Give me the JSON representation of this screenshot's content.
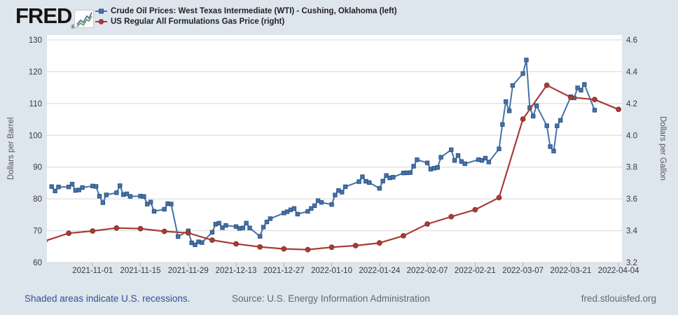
{
  "header": {
    "logo_text": "FRED",
    "registered_mark": "®"
  },
  "legend": [
    {
      "id": "wti",
      "label": "Crude Oil Prices: West Texas Intermediate (WTI) - Cushing, Oklahoma (left)",
      "color": "#4572a7",
      "marker_stroke": "#2d5484",
      "marker": "square"
    },
    {
      "id": "gas",
      "label": "US Regular All Formulations Gas Price (right)",
      "color": "#a93c38",
      "marker_stroke": "#8a2f2b",
      "marker": "circle"
    }
  ],
  "footer": {
    "recessions_note": "Shaded areas indicate U.S. recessions.",
    "source": "Source: U.S. Energy Information Administration",
    "site": "fred.stlouisfed.org"
  },
  "chart_data": {
    "type": "line",
    "grid": "horizontal-only",
    "legend_position": "top",
    "plot_background": "#ffffff",
    "page_background": "#dde5ed",
    "gridline_color": "#d8d8d8",
    "x_axis": {
      "start_date": "2021-10-18",
      "end_date": "2022-04-05",
      "tick_labels": [
        "2021-11-01",
        "2021-11-15",
        "2021-11-29",
        "2021-12-13",
        "2021-12-27",
        "2022-01-10",
        "2022-01-24",
        "2022-02-07",
        "2022-02-21",
        "2022-03-07",
        "2022-03-21",
        "2022-04-04"
      ]
    },
    "y_left": {
      "title": "Dollars per Barrel",
      "min": 60,
      "max": 130,
      "ticks": [
        60,
        70,
        80,
        90,
        100,
        110,
        120,
        130
      ],
      "tick_labels": [
        "60",
        "70",
        "80",
        "90",
        "100",
        "110",
        "120",
        "130"
      ]
    },
    "y_right": {
      "title": "Dollars per Gallon",
      "min": 3.2,
      "max": 4.6,
      "ticks": [
        3.2,
        3.4,
        3.6,
        3.8,
        4.0,
        4.2,
        4.4,
        4.6
      ],
      "tick_labels": [
        "3.2",
        "3.4",
        "3.6",
        "3.8",
        "4.0",
        "4.2",
        "4.4",
        "4.6"
      ]
    },
    "series": [
      {
        "name": "Crude Oil Prices: West Texas Intermediate (WTI) - Cushing, Oklahoma",
        "axis": "left",
        "color": "#4572a7",
        "marker_stroke": "#2d5484",
        "marker": "square",
        "points": [
          [
            "2021-10-20",
            83.87
          ],
          [
            "2021-10-21",
            82.5
          ],
          [
            "2021-10-22",
            83.76
          ],
          [
            "2021-10-25",
            83.76
          ],
          [
            "2021-10-26",
            84.65
          ],
          [
            "2021-10-27",
            82.66
          ],
          [
            "2021-10-28",
            82.81
          ],
          [
            "2021-10-29",
            83.57
          ],
          [
            "2021-11-01",
            84.05
          ],
          [
            "2021-11-02",
            83.91
          ],
          [
            "2021-11-03",
            80.86
          ],
          [
            "2021-11-04",
            78.81
          ],
          [
            "2021-11-05",
            81.27
          ],
          [
            "2021-11-08",
            81.93
          ],
          [
            "2021-11-09",
            84.15
          ],
          [
            "2021-11-10",
            81.34
          ],
          [
            "2021-11-11",
            81.59
          ],
          [
            "2021-11-12",
            80.79
          ],
          [
            "2021-11-15",
            80.88
          ],
          [
            "2021-11-16",
            80.76
          ],
          [
            "2021-11-17",
            78.36
          ],
          [
            "2021-11-18",
            79.01
          ],
          [
            "2021-11-19",
            76.1
          ],
          [
            "2021-11-22",
            76.75
          ],
          [
            "2021-11-23",
            78.5
          ],
          [
            "2021-11-24",
            78.39
          ],
          [
            "2021-11-26",
            68.15
          ],
          [
            "2021-11-29",
            69.95
          ],
          [
            "2021-11-30",
            66.18
          ],
          [
            "2021-12-01",
            65.57
          ],
          [
            "2021-12-02",
            66.5
          ],
          [
            "2021-12-03",
            66.26
          ],
          [
            "2021-12-06",
            69.49
          ],
          [
            "2021-12-07",
            72.05
          ],
          [
            "2021-12-08",
            72.36
          ],
          [
            "2021-12-09",
            70.94
          ],
          [
            "2021-12-10",
            71.67
          ],
          [
            "2021-12-13",
            71.29
          ],
          [
            "2021-12-14",
            70.73
          ],
          [
            "2021-12-15",
            70.87
          ],
          [
            "2021-12-16",
            72.38
          ],
          [
            "2021-12-17",
            70.86
          ],
          [
            "2021-12-20",
            68.23
          ],
          [
            "2021-12-21",
            71.12
          ],
          [
            "2021-12-22",
            72.76
          ],
          [
            "2021-12-23",
            73.79
          ],
          [
            "2021-12-27",
            75.57
          ],
          [
            "2021-12-28",
            75.98
          ],
          [
            "2021-12-29",
            76.56
          ],
          [
            "2021-12-30",
            76.99
          ],
          [
            "2021-12-31",
            75.21
          ],
          [
            "2022-01-03",
            76.08
          ],
          [
            "2022-01-04",
            76.99
          ],
          [
            "2022-01-05",
            77.85
          ],
          [
            "2022-01-06",
            79.46
          ],
          [
            "2022-01-07",
            78.9
          ],
          [
            "2022-01-10",
            78.23
          ],
          [
            "2022-01-11",
            81.22
          ],
          [
            "2022-01-12",
            82.64
          ],
          [
            "2022-01-13",
            82.12
          ],
          [
            "2022-01-14",
            83.82
          ],
          [
            "2022-01-18",
            85.43
          ],
          [
            "2022-01-19",
            86.96
          ],
          [
            "2022-01-20",
            85.55
          ],
          [
            "2022-01-21",
            85.14
          ],
          [
            "2022-01-24",
            83.31
          ],
          [
            "2022-01-25",
            85.6
          ],
          [
            "2022-01-26",
            87.35
          ],
          [
            "2022-01-27",
            86.61
          ],
          [
            "2022-01-28",
            86.82
          ],
          [
            "2022-01-31",
            88.15
          ],
          [
            "2022-02-01",
            88.2
          ],
          [
            "2022-02-02",
            88.26
          ],
          [
            "2022-02-03",
            90.27
          ],
          [
            "2022-02-04",
            92.31
          ],
          [
            "2022-02-07",
            91.32
          ],
          [
            "2022-02-08",
            89.36
          ],
          [
            "2022-02-09",
            89.66
          ],
          [
            "2022-02-10",
            89.88
          ],
          [
            "2022-02-11",
            93.1
          ],
          [
            "2022-02-14",
            95.46
          ],
          [
            "2022-02-15",
            92.07
          ],
          [
            "2022-02-16",
            93.66
          ],
          [
            "2022-02-17",
            91.76
          ],
          [
            "2022-02-18",
            91.07
          ],
          [
            "2022-02-22",
            92.35
          ],
          [
            "2022-02-23",
            92.1
          ],
          [
            "2022-02-24",
            92.81
          ],
          [
            "2022-02-25",
            91.59
          ],
          [
            "2022-02-28",
            95.72
          ],
          [
            "2022-03-01",
            103.41
          ],
          [
            "2022-03-02",
            110.6
          ],
          [
            "2022-03-03",
            107.67
          ],
          [
            "2022-03-04",
            115.68
          ],
          [
            "2022-03-07",
            119.4
          ],
          [
            "2022-03-08",
            123.7
          ],
          [
            "2022-03-09",
            108.7
          ],
          [
            "2022-03-10",
            106.02
          ],
          [
            "2022-03-11",
            109.33
          ],
          [
            "2022-03-14",
            103.01
          ],
          [
            "2022-03-15",
            96.44
          ],
          [
            "2022-03-16",
            95.04
          ],
          [
            "2022-03-17",
            102.98
          ],
          [
            "2022-03-18",
            104.7
          ],
          [
            "2022-03-21",
            112.12
          ],
          [
            "2022-03-22",
            111.76
          ],
          [
            "2022-03-23",
            114.93
          ],
          [
            "2022-03-24",
            114.2
          ],
          [
            "2022-03-25",
            116.0
          ],
          [
            "2022-03-28",
            107.9
          ]
        ]
      },
      {
        "name": "US Regular All Formulations Gas Price",
        "axis": "right",
        "color": "#a93c38",
        "marker_stroke": "#8a2f2b",
        "marker": "circle",
        "points": [
          [
            "2021-10-18",
            3.335
          ],
          [
            "2021-10-25",
            3.384
          ],
          [
            "2021-11-01",
            3.398
          ],
          [
            "2021-11-08",
            3.417
          ],
          [
            "2021-11-15",
            3.413
          ],
          [
            "2021-11-22",
            3.396
          ],
          [
            "2021-11-29",
            3.386
          ],
          [
            "2021-12-06",
            3.341
          ],
          [
            "2021-12-13",
            3.317
          ],
          [
            "2021-12-20",
            3.298
          ],
          [
            "2021-12-27",
            3.286
          ],
          [
            "2022-01-03",
            3.281
          ],
          [
            "2022-01-10",
            3.296
          ],
          [
            "2022-01-17",
            3.306
          ],
          [
            "2022-01-24",
            3.323
          ],
          [
            "2022-01-31",
            3.368
          ],
          [
            "2022-02-07",
            3.442
          ],
          [
            "2022-02-14",
            3.488
          ],
          [
            "2022-02-21",
            3.532
          ],
          [
            "2022-02-28",
            3.608
          ],
          [
            "2022-03-07",
            4.102
          ],
          [
            "2022-03-14",
            4.315
          ],
          [
            "2022-03-21",
            4.239
          ],
          [
            "2022-03-28",
            4.225
          ],
          [
            "2022-04-04",
            4.163
          ]
        ]
      }
    ]
  }
}
